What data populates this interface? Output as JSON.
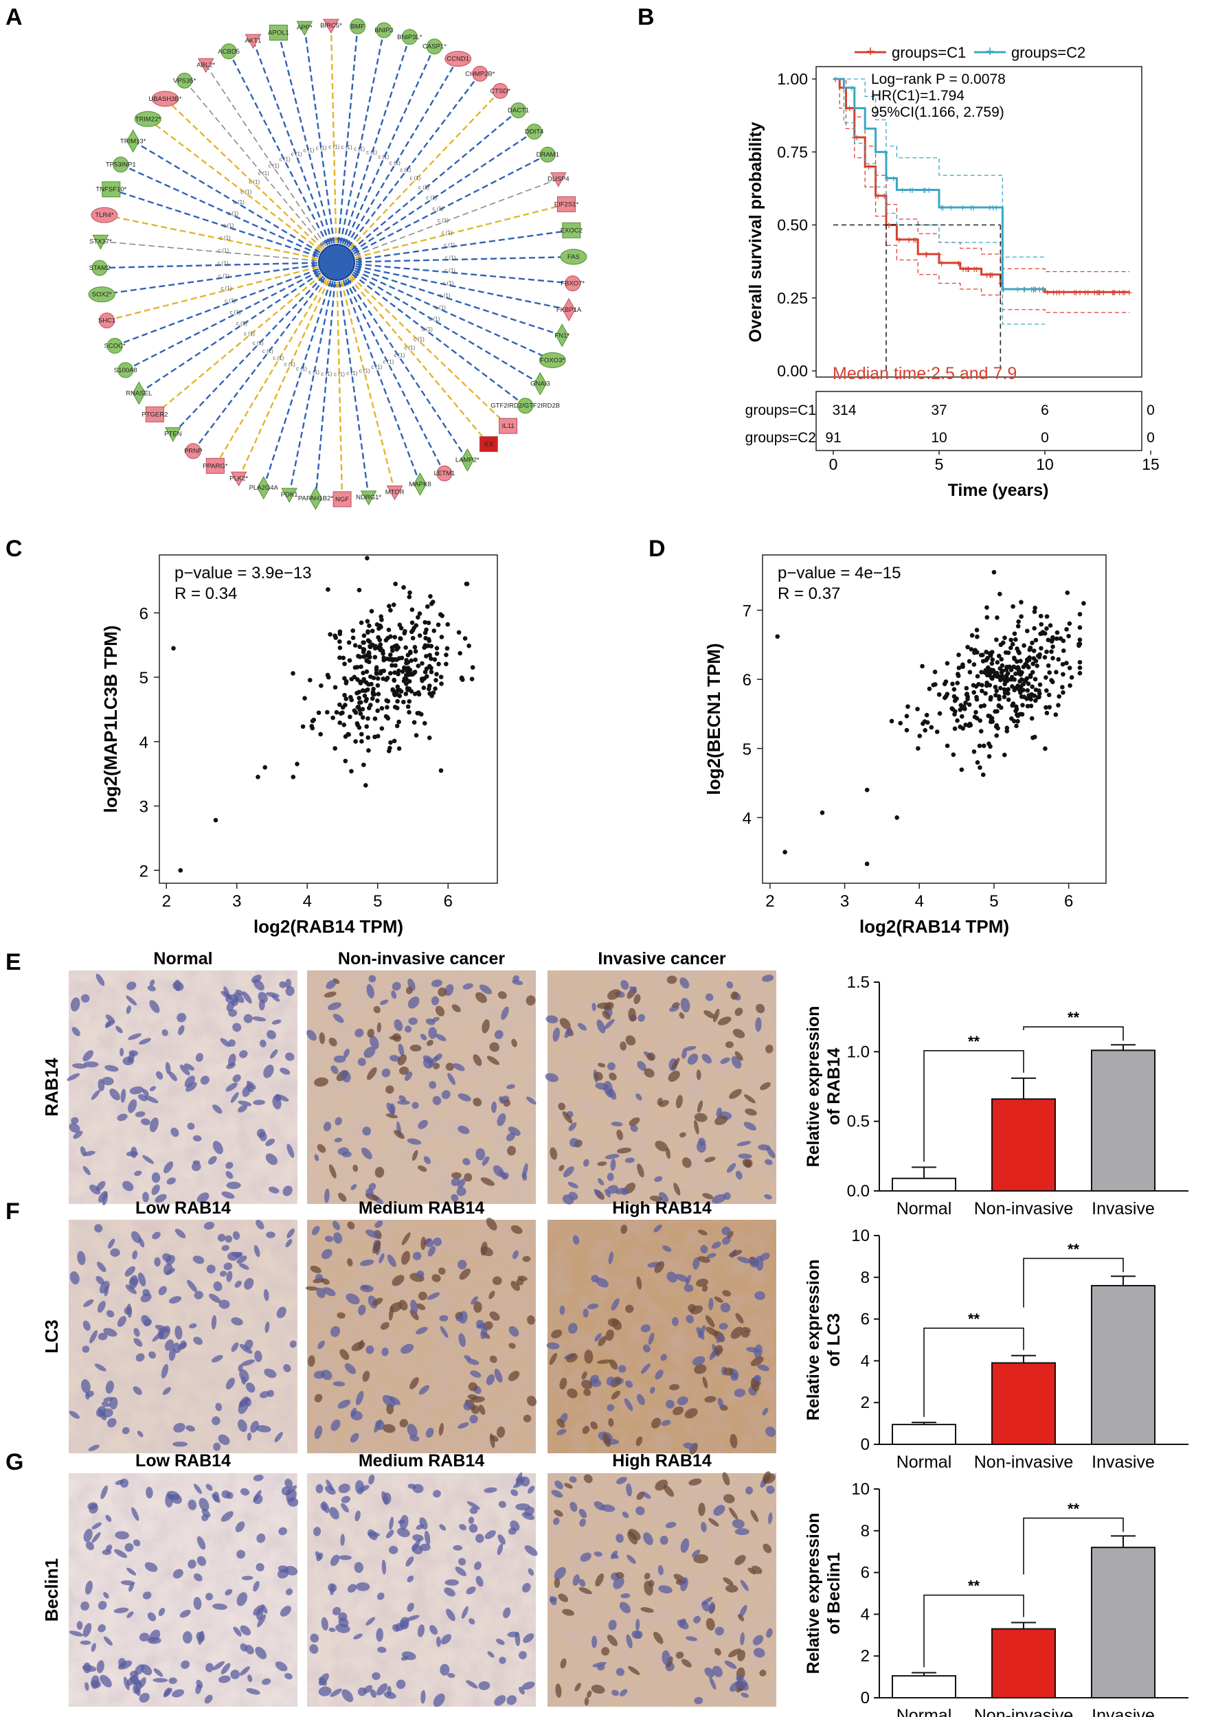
{
  "panel_letters": [
    "A",
    "B",
    "C",
    "D",
    "E",
    "F",
    "G"
  ],
  "colors": {
    "c1": "#d9402e",
    "c2": "#3aa6c4",
    "green_node": "#8cc46a",
    "red_node": "#ef8a95",
    "edge_blue": "#2f62b5",
    "edge_yellow": "#e3b42a",
    "edge_gray": "#8a8a8a",
    "bar_normal": "#ffffff",
    "bar_noninvasive": "#e0231c",
    "bar_invasive": "#a9a9ae"
  },
  "network": {
    "center_label": "RAB14",
    "edge_label": "c (1)",
    "nodes": [
      {
        "label": "AKT1",
        "shape": "tri",
        "color": "red",
        "edge": "blue"
      },
      {
        "label": "APOL1",
        "shape": "rect",
        "color": "green",
        "edge": "blue"
      },
      {
        "label": "APP*",
        "shape": "tri",
        "color": "green",
        "edge": "blue"
      },
      {
        "label": "BIRC5*",
        "shape": "tri",
        "color": "red",
        "edge": "yellow"
      },
      {
        "label": "BMF",
        "shape": "circle",
        "color": "green",
        "edge": "blue"
      },
      {
        "label": "BNIP3",
        "shape": "circle",
        "color": "green",
        "edge": "blue"
      },
      {
        "label": "BNIP3L*",
        "shape": "circle",
        "color": "green",
        "edge": "blue"
      },
      {
        "label": "CASP1*",
        "shape": "circle",
        "color": "green",
        "edge": "blue"
      },
      {
        "label": "CCND1",
        "shape": "ellipse",
        "color": "red",
        "edge": "blue"
      },
      {
        "label": "CHMP2B*",
        "shape": "circle",
        "color": "red",
        "edge": "blue"
      },
      {
        "label": "CTSD*",
        "shape": "circle",
        "color": "red",
        "edge": "yellow"
      },
      {
        "label": "DACT1",
        "shape": "circle",
        "color": "green",
        "edge": "blue"
      },
      {
        "label": "DDIT4",
        "shape": "circle",
        "color": "green",
        "edge": "blue"
      },
      {
        "label": "DRAM1",
        "shape": "circle",
        "color": "green",
        "edge": "blue"
      },
      {
        "label": "DUSP4",
        "shape": "tri",
        "color": "red",
        "edge": "gray"
      },
      {
        "label": "EIF2S1*",
        "shape": "rect",
        "color": "red",
        "edge": "yellow"
      },
      {
        "label": "EXOC2",
        "shape": "rect",
        "color": "green",
        "edge": "blue"
      },
      {
        "label": "FAS",
        "shape": "ellipse",
        "color": "green",
        "edge": "blue"
      },
      {
        "label": "FBXO7*",
        "shape": "circle",
        "color": "red",
        "edge": "blue"
      },
      {
        "label": "FKBP1A",
        "shape": "diamond",
        "color": "red",
        "edge": "blue"
      },
      {
        "label": "FN1*",
        "shape": "diamond",
        "color": "green",
        "edge": "blue"
      },
      {
        "label": "FOXO3*",
        "shape": "ellipse",
        "color": "green",
        "edge": "blue"
      },
      {
        "label": "GNAI3",
        "shape": "diamond",
        "color": "green",
        "edge": "blue"
      },
      {
        "label": "GTF2IRD2/GTF2IRD2B",
        "shape": "circle",
        "color": "green",
        "edge": "blue"
      },
      {
        "label": "IL11",
        "shape": "rect",
        "color": "red",
        "edge": "yellow"
      },
      {
        "label": "IL6",
        "shape": "rect",
        "color": "darkred",
        "edge": "yellow"
      },
      {
        "label": "LAMP2*",
        "shape": "diamond",
        "color": "green",
        "edge": "blue"
      },
      {
        "label": "LETM1",
        "shape": "circle",
        "color": "red",
        "edge": "blue"
      },
      {
        "label": "MAPK8",
        "shape": "diamond",
        "color": "green",
        "edge": "blue"
      },
      {
        "label": "MTOR",
        "shape": "tri",
        "color": "red",
        "edge": "yellow"
      },
      {
        "label": "NDRG1*",
        "shape": "tri",
        "color": "green",
        "edge": "blue"
      },
      {
        "label": "NGF",
        "shape": "rect",
        "color": "red",
        "edge": "yellow"
      },
      {
        "label": "PAFAH1B2*",
        "shape": "diamond",
        "color": "green",
        "edge": "blue"
      },
      {
        "label": "PDK1",
        "shape": "tri",
        "color": "green",
        "edge": "blue"
      },
      {
        "label": "PLA2G4A",
        "shape": "diamond",
        "color": "green",
        "edge": "blue"
      },
      {
        "label": "PLK2*",
        "shape": "tri",
        "color": "red",
        "edge": "yellow"
      },
      {
        "label": "PPARG*",
        "shape": "rect",
        "color": "red",
        "edge": "yellow"
      },
      {
        "label": "PRNP",
        "shape": "circle",
        "color": "red",
        "edge": "blue"
      },
      {
        "label": "PTEN",
        "shape": "tri",
        "color": "green",
        "edge": "blue"
      },
      {
        "label": "PTGER2",
        "shape": "rect",
        "color": "red",
        "edge": "yellow"
      },
      {
        "label": "RNASEL",
        "shape": "diamond",
        "color": "green",
        "edge": "blue"
      },
      {
        "label": "S100A8",
        "shape": "circle",
        "color": "green",
        "edge": "blue"
      },
      {
        "label": "SCOC*",
        "shape": "circle",
        "color": "green",
        "edge": "blue"
      },
      {
        "label": "SHC1",
        "shape": "circle",
        "color": "red",
        "edge": "yellow"
      },
      {
        "label": "SOX2*",
        "shape": "ellipse",
        "color": "green",
        "edge": "blue"
      },
      {
        "label": "STAM2",
        "shape": "circle",
        "color": "green",
        "edge": "blue"
      },
      {
        "label": "STX17*",
        "shape": "tri",
        "color": "green",
        "edge": "gray"
      },
      {
        "label": "TLR4*",
        "shape": "ellipse",
        "color": "red",
        "edge": "yellow"
      },
      {
        "label": "TNFSF10*",
        "shape": "rect",
        "color": "green",
        "edge": "blue"
      },
      {
        "label": "TP53INP1",
        "shape": "circle",
        "color": "green",
        "edge": "blue"
      },
      {
        "label": "TRIM13*",
        "shape": "diamond",
        "color": "green",
        "edge": "blue"
      },
      {
        "label": "TRIM22*",
        "shape": "ellipse",
        "color": "green",
        "edge": "yellow"
      },
      {
        "label": "UBASH3B*",
        "shape": "ellipse",
        "color": "red",
        "edge": "yellow"
      },
      {
        "label": "VPS35*",
        "shape": "circle",
        "color": "green",
        "edge": "gray"
      },
      {
        "label": "ABL2*",
        "shape": "tri",
        "color": "red",
        "edge": "gray"
      },
      {
        "label": "ACBD5",
        "shape": "circle",
        "color": "green",
        "edge": "blue"
      }
    ]
  },
  "km": {
    "legend_title": "",
    "legend": [
      "groups=C1",
      "groups=C2"
    ],
    "stats": [
      "Log−rank P = 0.0078",
      "HR(C1)=1.794",
      "95%CI(1.166, 2.759)"
    ],
    "median_text": "Median time:2.5 and 7.9",
    "ylabel": "Overall survival probability",
    "xlabel": "Time (years)",
    "yticks": [
      "0.00",
      "0.25",
      "0.50",
      "0.75",
      "1.00"
    ],
    "xticks": [
      "0",
      "5",
      "10",
      "15"
    ],
    "risk_rows": [
      {
        "label": "groups=C1",
        "values": [
          "314",
          "37",
          "6",
          "0"
        ]
      },
      {
        "label": "groups=C2",
        "values": [
          "91",
          "10",
          "0",
          "0"
        ]
      }
    ]
  },
  "chart_data": [
    {
      "panel": "B",
      "type": "line",
      "title": "",
      "xlabel": "Time (years)",
      "ylabel": "Overall survival probability",
      "xlim": [
        0,
        14
      ],
      "ylim": [
        0,
        1
      ],
      "series": [
        {
          "name": "groups=C1",
          "x": [
            0,
            0.3,
            0.6,
            1.0,
            1.5,
            2.0,
            2.5,
            3.0,
            4.0,
            5.0,
            6.0,
            7.0,
            7.9,
            8.0,
            10.0,
            14.0
          ],
          "y": [
            1.0,
            0.97,
            0.9,
            0.8,
            0.7,
            0.6,
            0.5,
            0.45,
            0.4,
            0.37,
            0.35,
            0.33,
            0.3,
            0.28,
            0.27,
            0.27
          ]
        },
        {
          "name": "groups=C2",
          "x": [
            0,
            0.5,
            1.0,
            1.5,
            2.0,
            2.5,
            3.0,
            4.0,
            5.0,
            6.0,
            7.9,
            8.0,
            10.0
          ],
          "y": [
            1.0,
            0.97,
            0.9,
            0.83,
            0.75,
            0.66,
            0.62,
            0.62,
            0.56,
            0.56,
            0.56,
            0.28,
            0.28
          ]
        }
      ],
      "annotations": [
        "Log−rank P = 0.0078",
        "HR(C1)=1.794",
        "95%CI(1.166, 2.759)",
        "Median time:2.5 and 7.9"
      ]
    },
    {
      "panel": "C",
      "type": "scatter",
      "title": "",
      "xlabel": "log2(RAB14 TPM)",
      "ylabel": "log2(MAP1LC3B TPM)",
      "xlim": [
        1.9,
        6.7
      ],
      "ylim": [
        1.8,
        6.9
      ],
      "xticks": [
        "2",
        "3",
        "4",
        "5",
        "6"
      ],
      "yticks": [
        "2",
        "3",
        "4",
        "5",
        "6"
      ],
      "annotations": [
        "p−value = 3.9e−13",
        "R = 0.34"
      ],
      "seed": 11,
      "n": 380,
      "cx": 5.15,
      "cy": 5.1,
      "sx": 0.48,
      "sy": 0.55,
      "slope": 0.39,
      "outliers": [
        [
          2.1,
          5.45
        ],
        [
          2.2,
          2.0
        ],
        [
          2.7,
          2.78
        ],
        [
          3.3,
          3.45
        ],
        [
          3.4,
          3.6
        ],
        [
          3.8,
          3.45
        ],
        [
          5.9,
          3.55
        ],
        [
          4.85,
          6.85
        ]
      ]
    },
    {
      "panel": "D",
      "type": "scatter",
      "title": "",
      "xlabel": "log2(RAB14 TPM)",
      "ylabel": "log2(BECN1 TPM)",
      "xlim": [
        1.9,
        6.5
      ],
      "ylim": [
        3.05,
        7.8
      ],
      "xticks": [
        "2",
        "3",
        "4",
        "5",
        "6"
      ],
      "yticks": [
        "4",
        "5",
        "6",
        "7"
      ],
      "annotations": [
        "p−value = 4e−15",
        "R = 0.37"
      ],
      "seed": 23,
      "n": 380,
      "cx": 5.1,
      "cy": 5.95,
      "sx": 0.5,
      "sy": 0.42,
      "slope": 0.35,
      "outliers": [
        [
          2.1,
          6.62
        ],
        [
          2.2,
          3.5
        ],
        [
          2.7,
          4.07
        ],
        [
          3.3,
          3.33
        ],
        [
          3.3,
          4.4
        ],
        [
          3.7,
          4.0
        ],
        [
          5.0,
          7.55
        ],
        [
          6.2,
          7.1
        ]
      ]
    },
    {
      "panel": "E",
      "type": "bar",
      "categories": [
        "Normal",
        "Non-invasive",
        "Invasive"
      ],
      "values": [
        0.09,
        0.66,
        1.01
      ],
      "errors": [
        0.08,
        0.15,
        0.04
      ],
      "ylabel": "Relative expression of RAB14",
      "ylim": [
        0,
        1.5
      ],
      "yticks": [
        "0.0",
        "0.5",
        "1.0",
        "1.5"
      ],
      "sig": [
        "**",
        "**"
      ]
    },
    {
      "panel": "F",
      "type": "bar",
      "categories": [
        "Normal",
        "Non-invasive",
        "Invasive"
      ],
      "values": [
        0.95,
        3.9,
        7.6
      ],
      "errors": [
        0.1,
        0.35,
        0.45
      ],
      "ylabel": "Relative expression of LC3",
      "ylim": [
        0,
        10
      ],
      "yticks": [
        "0",
        "2",
        "4",
        "6",
        "8",
        "10"
      ],
      "sig": [
        "**",
        "**"
      ]
    },
    {
      "panel": "G",
      "type": "bar",
      "categories": [
        "Normal",
        "Non-invasive",
        "Invasive"
      ],
      "values": [
        1.05,
        3.3,
        7.2
      ],
      "errors": [
        0.15,
        0.3,
        0.55
      ],
      "ylabel": "Relative expression of Beclin1",
      "ylim": [
        0,
        10
      ],
      "yticks": [
        "0",
        "2",
        "4",
        "6",
        "8",
        "10"
      ],
      "sig": [
        "**",
        "**"
      ]
    }
  ],
  "histology": {
    "rows": [
      {
        "label": "RAB14",
        "titles": [
          "Normal",
          "Non-invasive cancer",
          "Invasive cancer"
        ],
        "stain": [
          0.15,
          0.55,
          0.6
        ]
      },
      {
        "label": "LC3",
        "titles": [
          "Low RAB14",
          "Medium RAB14",
          "High RAB14"
        ],
        "stain": [
          0.25,
          0.7,
          0.95
        ]
      },
      {
        "label": "Beclin1",
        "titles": [
          "Low RAB14",
          "Medium RAB14",
          "High RAB14"
        ],
        "stain": [
          0.05,
          0.15,
          0.6
        ]
      }
    ]
  },
  "bar_charts": [
    {
      "ylabel_lines": [
        "Relative expression",
        "of RAB14"
      ],
      "xticklabels": [
        "Normal",
        "Non-invasive",
        "Invasive"
      ]
    },
    {
      "ylabel_lines": [
        "Relative expression",
        "of LC3"
      ],
      "xticklabels": [
        "Normal",
        "Non-invasive",
        "Invasive"
      ]
    },
    {
      "ylabel_lines": [
        "Relative expression",
        "of Beclin1"
      ],
      "xticklabels": [
        "Normal",
        "Non-invasive",
        "Invasive"
      ]
    }
  ]
}
